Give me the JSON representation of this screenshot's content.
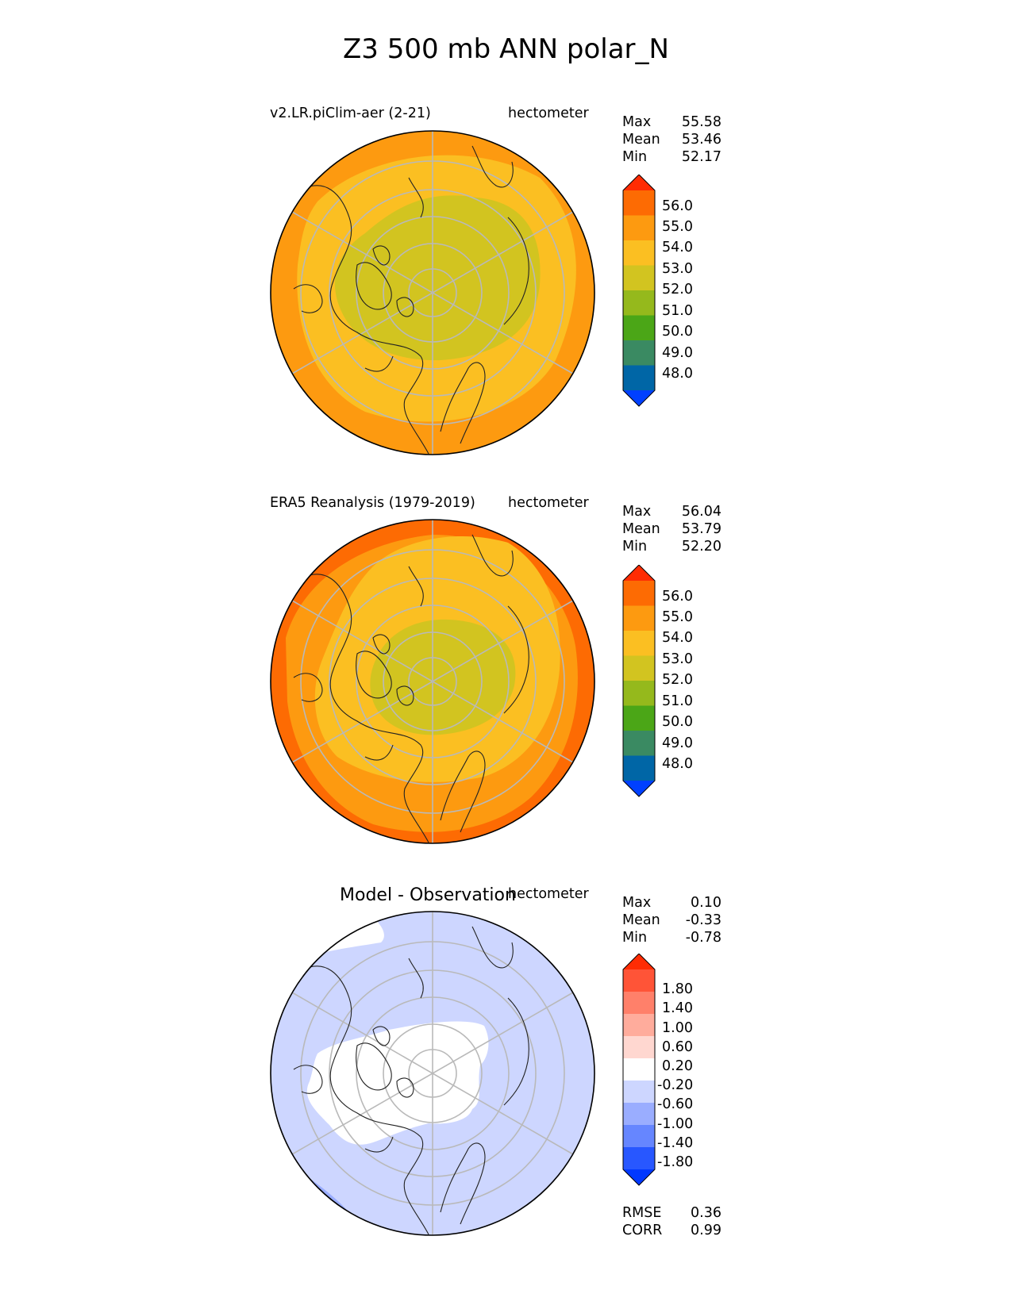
{
  "title": "Z3 500 mb ANN polar_N",
  "colors": {
    "abs": [
      "#0040ff",
      "#0066a6",
      "#3a8a62",
      "#4ba617",
      "#95b91c",
      "#d2c420",
      "#fbbf22",
      "#fd9a10",
      "#fd6b03",
      "#ff2c04"
    ],
    "diff": [
      "#0038ff",
      "#2857ff",
      "#6686ff",
      "#9aadff",
      "#cdd6ff",
      "#ffffff",
      "#ffd7d0",
      "#ffac9c",
      "#ff806a",
      "#ff5437",
      "#ff2c04"
    ]
  },
  "panels": [
    {
      "name": "model",
      "left_title": "v2.LR.piClim-aer (2-21)",
      "units": "hectometer",
      "stats": [
        {
          "label": "Max",
          "value": "55.58"
        },
        {
          "label": "Mean",
          "value": "53.46"
        },
        {
          "label": "Min",
          "value": "52.17"
        }
      ],
      "colorbar_ticks": [
        "56.0",
        "55.0",
        "54.0",
        "53.0",
        "52.0",
        "51.0",
        "50.0",
        "49.0",
        "48.0"
      ],
      "contour_levels": [
        48,
        49,
        50,
        51,
        52,
        53,
        54,
        55,
        56
      ]
    },
    {
      "name": "obs",
      "left_title": "ERA5 Reanalysis (1979-2019)",
      "units": "hectometer",
      "stats": [
        {
          "label": "Max",
          "value": "56.04"
        },
        {
          "label": "Mean",
          "value": "53.79"
        },
        {
          "label": "Min",
          "value": "52.20"
        }
      ],
      "colorbar_ticks": [
        "56.0",
        "55.0",
        "54.0",
        "53.0",
        "52.0",
        "51.0",
        "50.0",
        "49.0",
        "48.0"
      ],
      "contour_levels": [
        48,
        49,
        50,
        51,
        52,
        53,
        54,
        55,
        56
      ]
    },
    {
      "name": "diff",
      "center_title": "Model - Observation",
      "units": "hectometer",
      "stats": [
        {
          "label": "Max",
          "value": "0.10"
        },
        {
          "label": "Mean",
          "value": "-0.33"
        },
        {
          "label": "Min",
          "value": "-0.78"
        }
      ],
      "colorbar_ticks": [
        "1.80",
        "1.40",
        "1.00",
        "0.60",
        "0.20",
        "-0.20",
        "-0.60",
        "-1.00",
        "-1.40",
        "-1.80"
      ],
      "contour_levels": [
        -1.8,
        -1.4,
        -1.0,
        -0.6,
        -0.2,
        0.2,
        0.6,
        1.0,
        1.4,
        1.8
      ],
      "metrics": [
        {
          "label": "RMSE",
          "value": "0.36"
        },
        {
          "label": "CORR",
          "value": "0.99"
        }
      ]
    }
  ],
  "chart_data": {
    "type": "heatmap",
    "projection": "north polar stereographic",
    "title": "Z3 500 mb ANN polar_N",
    "units": "hectometer",
    "grid": true,
    "legend_placement": "right",
    "panels": [
      {
        "title": "v2.LR.piClim-aer (2-21)",
        "max": 55.58,
        "mean": 53.46,
        "min": 52.17,
        "levels": [
          48,
          49,
          50,
          51,
          52,
          53,
          54,
          55,
          56
        ]
      },
      {
        "title": "ERA5 Reanalysis (1979-2019)",
        "max": 56.04,
        "mean": 53.79,
        "min": 52.2,
        "levels": [
          48,
          49,
          50,
          51,
          52,
          53,
          54,
          55,
          56
        ]
      },
      {
        "title": "Model - Observation",
        "max": 0.1,
        "mean": -0.33,
        "min": -0.78,
        "rmse": 0.36,
        "corr": 0.99,
        "levels": [
          -1.8,
          -1.4,
          -1.0,
          -0.6,
          -0.2,
          0.2,
          0.6,
          1.0,
          1.4,
          1.8
        ]
      }
    ]
  }
}
